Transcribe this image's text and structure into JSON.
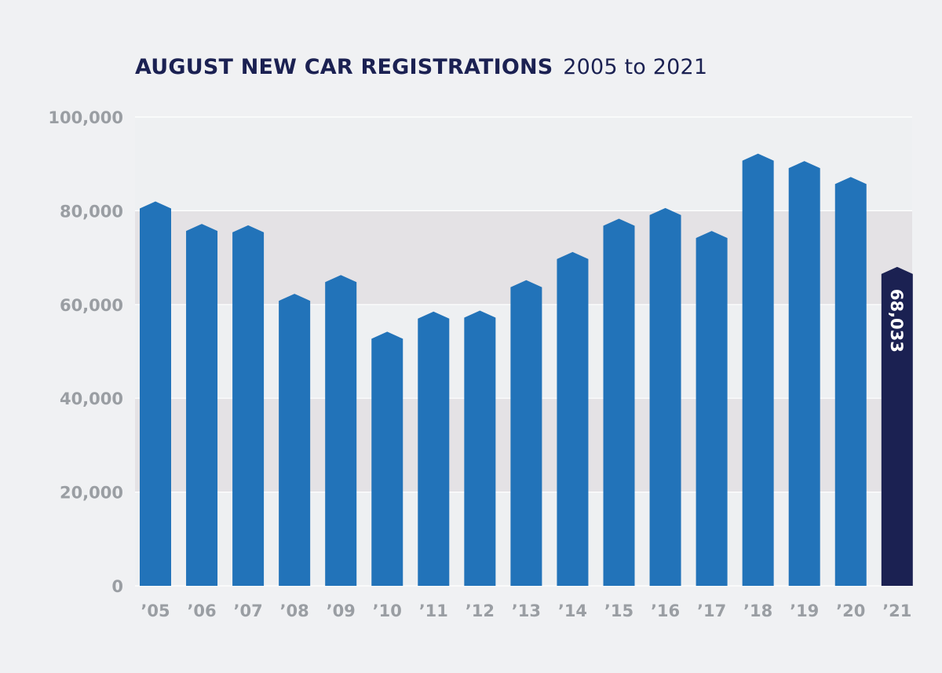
{
  "chart_data": {
    "type": "bar",
    "title": "AUGUST NEW CAR REGISTRATIONS",
    "subtitle": "2005 to 2021",
    "categories": [
      "’05",
      "’06",
      "’07",
      "’08",
      "’09",
      "’10",
      "’11",
      "’12",
      "’13",
      "’14",
      "’15",
      "’16",
      "’17",
      "’18",
      "’19",
      "’20",
      "’21"
    ],
    "values": [
      82000,
      77200,
      76900,
      62300,
      66300,
      54200,
      58500,
      58700,
      65200,
      71200,
      78300,
      80600,
      75700,
      92200,
      90600,
      87200,
      68033
    ],
    "highlight_index": 16,
    "data_labels": [
      {
        "index": 16,
        "text": "68,033"
      }
    ],
    "yticks": [
      0,
      20000,
      40000,
      60000,
      80000,
      100000
    ],
    "ytick_labels": [
      "0",
      "20,000",
      "40,000",
      "60,000",
      "80,000",
      "100,000"
    ],
    "ylim": [
      0,
      100000
    ],
    "xlabel": "",
    "ylabel": "",
    "grid": true,
    "legend": "none",
    "colors": {
      "bar": "#2273b9",
      "highlight_bar": "#1b2152",
      "band_dark": "#e4e2e5",
      "band_light": "#eef0f2",
      "gridline": "#ffffff",
      "tick_text": "#9a9ea3",
      "title": "#1b2152",
      "background": "#f0f1f3"
    }
  }
}
